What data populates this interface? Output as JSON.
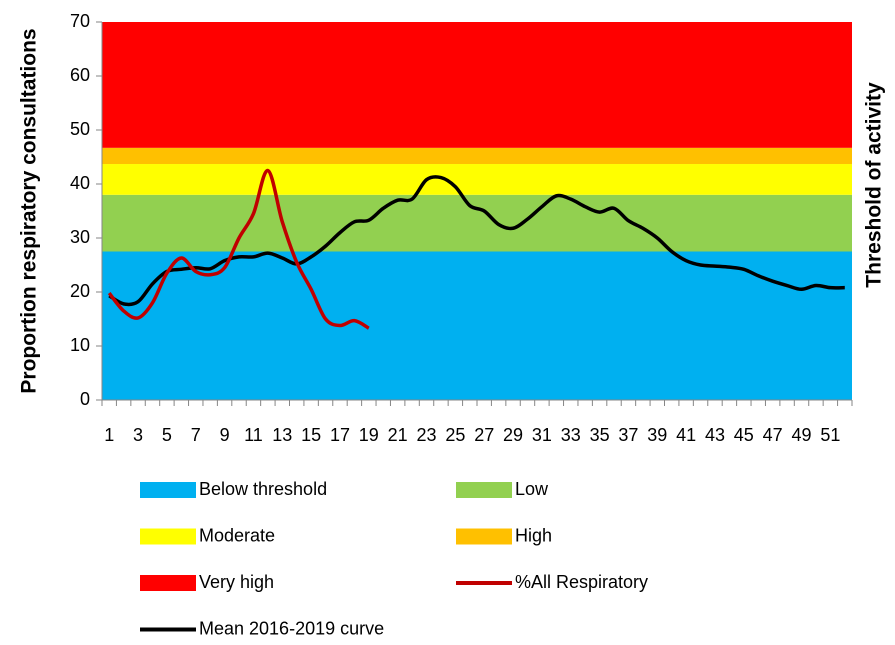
{
  "chart_data": {
    "type": "line",
    "y_label": "Proportion respiratory consultations",
    "y2_label": "Threshold of activity",
    "categories": [
      1,
      null,
      3,
      null,
      5,
      null,
      7,
      null,
      9,
      null,
      11,
      null,
      13,
      null,
      15,
      null,
      17,
      null,
      19,
      null,
      21,
      null,
      23,
      null,
      25,
      null,
      27,
      null,
      29,
      null,
      31,
      null,
      33,
      null,
      35,
      null,
      37,
      null,
      39,
      null,
      41,
      null,
      43,
      null,
      45,
      null,
      47,
      null,
      49,
      null,
      51,
      null
    ],
    "ylim": [
      0,
      70
    ],
    "yticks": [
      0,
      10,
      20,
      30,
      40,
      50,
      60,
      70
    ],
    "bands": [
      {
        "name": "Below threshold",
        "color": "#00b0f0",
        "value": 27.5
      },
      {
        "name": "Low",
        "color": "#92d050",
        "value": 10.5
      },
      {
        "name": "Moderate",
        "color": "#ffff00",
        "value": 5.7
      },
      {
        "name": "High",
        "color": "#ffc000",
        "value": 3
      },
      {
        "name": "Very high",
        "color": "#ff0000",
        "value": 23.3
      }
    ],
    "series": [
      {
        "name": "%All Respiratory",
        "color": "#c00000",
        "values": [
          19.8,
          16.5,
          15.2,
          18,
          23.5,
          26.3,
          23.8,
          23.2,
          24.5,
          30,
          34.5,
          42.5,
          33,
          25.5,
          20.5,
          15,
          13.8,
          14.7,
          13.3,
          null,
          null,
          null,
          null,
          null,
          null,
          null,
          null,
          null,
          null,
          null,
          null,
          null,
          null,
          null,
          null,
          null,
          null,
          null,
          null,
          null,
          null,
          null,
          null,
          null,
          null,
          null,
          null,
          null,
          null,
          null,
          null,
          null
        ]
      },
      {
        "name": "Mean 2016-2019 curve",
        "color": "#000000",
        "values": [
          19.3,
          17.8,
          18.2,
          21.5,
          23.8,
          24.2,
          24.5,
          24.3,
          25.8,
          26.5,
          26.5,
          27.2,
          26.3,
          25.2,
          26.5,
          28.5,
          31,
          33,
          33.3,
          35.5,
          37,
          37.2,
          40.8,
          41.2,
          39.5,
          36,
          35,
          32.5,
          31.8,
          33.5,
          35.8,
          37.8,
          37.2,
          35.8,
          34.8,
          35.5,
          33.2,
          31.8,
          30,
          27.5,
          25.8,
          25,
          24.8,
          24.6,
          24.2,
          23,
          22,
          21.2,
          20.5,
          21.2,
          20.8,
          20.8
        ]
      }
    ]
  }
}
